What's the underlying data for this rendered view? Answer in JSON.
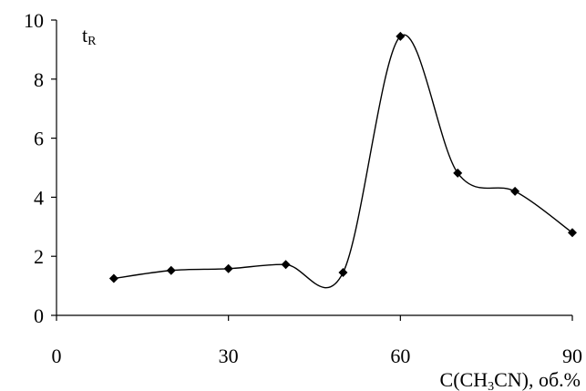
{
  "chart_data": {
    "type": "line",
    "smooth": true,
    "title": "",
    "ylabel_main": "t",
    "ylabel_sub": "R",
    "xlabel": {
      "pre": "C(CH",
      "sub": "3",
      "post": "CN), об.%"
    },
    "xlim": [
      0,
      90
    ],
    "ylim": [
      0,
      10
    ],
    "xticks": [
      0,
      30,
      60,
      90
    ],
    "yticks": [
      0,
      2,
      4,
      6,
      8,
      10
    ],
    "grid": false,
    "legend": "none",
    "marker": "diamond",
    "series": [
      {
        "x": [
          10,
          20,
          30,
          40,
          50,
          60,
          70,
          80,
          90
        ],
        "y": [
          1.25,
          1.52,
          1.58,
          1.72,
          1.45,
          9.45,
          4.82,
          4.2,
          2.8
        ]
      }
    ]
  }
}
